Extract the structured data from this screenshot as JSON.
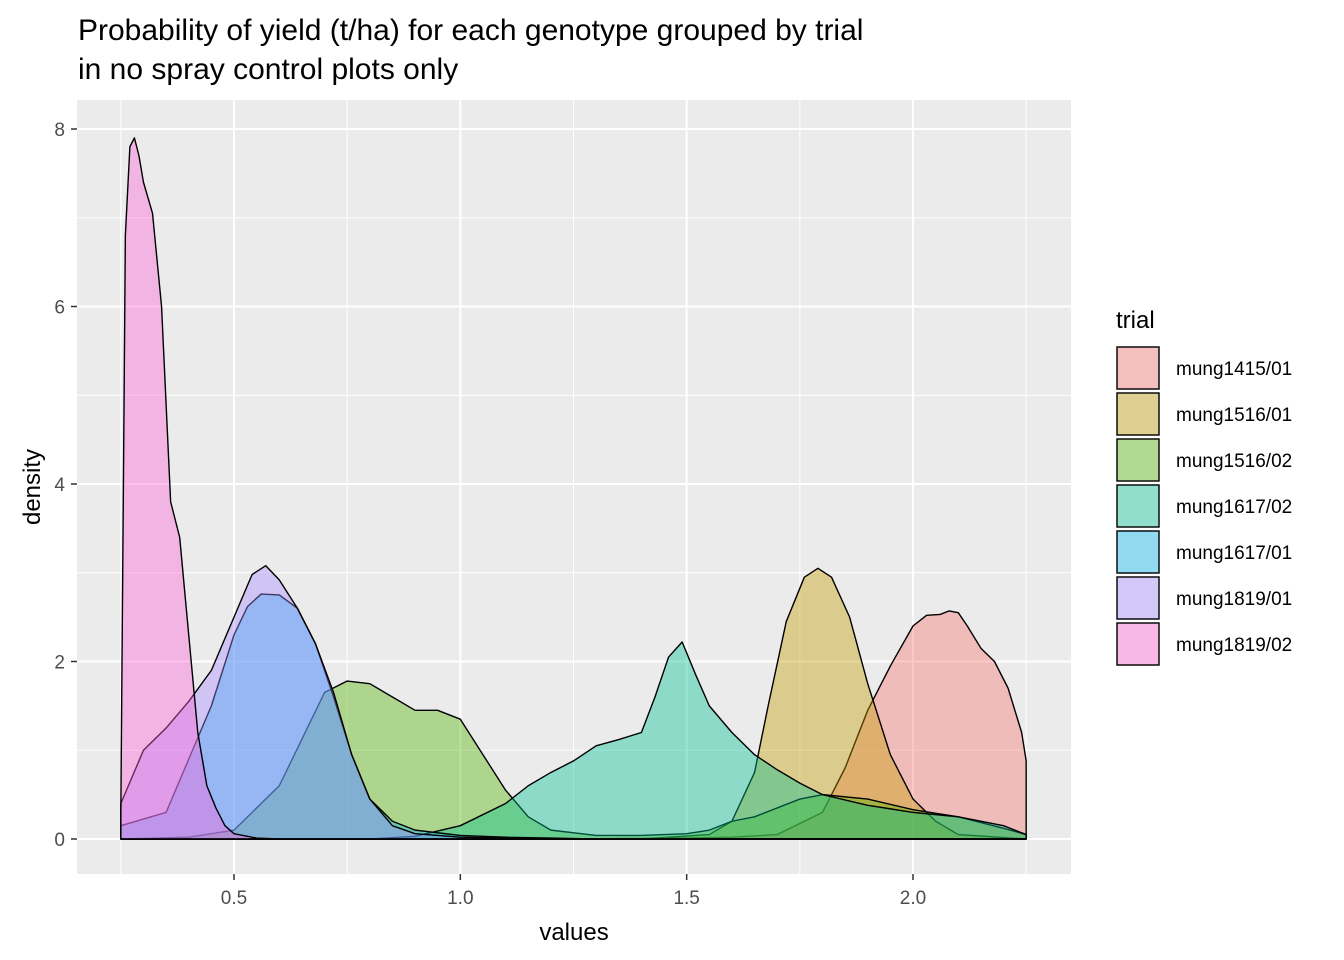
{
  "chart_data": {
    "type": "area",
    "title_lines": [
      "Probability of yield (t/ha) for each genotype grouped by trial",
      "in no spray control plots only"
    ],
    "xlabel": "values",
    "ylabel": "density",
    "xlim": [
      0.25,
      2.25
    ],
    "ylim": [
      0,
      8
    ],
    "x_ticks": [
      0.5,
      1.0,
      1.5,
      2.0
    ],
    "x_tick_labels": [
      "0.5",
      "1.0",
      "1.5",
      "2.0"
    ],
    "y_ticks": [
      0,
      2,
      4,
      6,
      8
    ],
    "y_tick_labels": [
      "0",
      "2",
      "4",
      "6",
      "8"
    ],
    "grid": true,
    "legend_title": "trial",
    "legend_position": "right",
    "series": [
      {
        "name": "mung1415/01",
        "color": "#F8766D",
        "x": [
          0.25,
          0.5,
          0.75,
          1.0,
          1.25,
          1.5,
          1.6,
          1.7,
          1.8,
          1.85,
          1.9,
          1.95,
          2.0,
          2.03,
          2.06,
          2.08,
          2.1,
          2.12,
          2.15,
          2.18,
          2.21,
          2.24,
          2.25,
          2.25
        ],
        "y": [
          0.0,
          0.0,
          0.0,
          0.0,
          0.0,
          0.01,
          0.02,
          0.05,
          0.3,
          0.8,
          1.45,
          1.95,
          2.4,
          2.52,
          2.53,
          2.57,
          2.55,
          2.4,
          2.15,
          2.0,
          1.7,
          1.2,
          0.88,
          0.0
        ]
      },
      {
        "name": "mung1516/01",
        "color": "#C49A00",
        "x": [
          0.25,
          1.0,
          1.4,
          1.55,
          1.6,
          1.65,
          1.68,
          1.72,
          1.76,
          1.79,
          1.82,
          1.86,
          1.9,
          1.95,
          2.0,
          2.05,
          2.1,
          2.25
        ],
        "y": [
          0.0,
          0.0,
          0.0,
          0.05,
          0.2,
          0.75,
          1.5,
          2.45,
          2.95,
          3.05,
          2.95,
          2.5,
          1.75,
          0.95,
          0.45,
          0.2,
          0.05,
          0.0
        ]
      },
      {
        "name": "mung1516/02",
        "color": "#53B400",
        "x": [
          0.25,
          0.4,
          0.5,
          0.6,
          0.7,
          0.75,
          0.8,
          0.85,
          0.9,
          0.95,
          1.0,
          1.05,
          1.1,
          1.15,
          1.2,
          1.3,
          1.4,
          1.5,
          1.55,
          1.6,
          1.65,
          1.7,
          1.75,
          1.8,
          1.9,
          2.0,
          2.1,
          2.2,
          2.25,
          2.25
        ],
        "y": [
          0.0,
          0.02,
          0.1,
          0.6,
          1.65,
          1.78,
          1.75,
          1.6,
          1.45,
          1.45,
          1.35,
          0.95,
          0.55,
          0.25,
          0.1,
          0.04,
          0.04,
          0.06,
          0.1,
          0.2,
          0.25,
          0.35,
          0.45,
          0.5,
          0.45,
          0.33,
          0.25,
          0.12,
          0.05,
          0.0
        ]
      },
      {
        "name": "mung1617/02",
        "color": "#00C094",
        "x": [
          0.25,
          0.8,
          0.9,
          1.0,
          1.1,
          1.15,
          1.2,
          1.25,
          1.3,
          1.35,
          1.4,
          1.43,
          1.46,
          1.49,
          1.52,
          1.55,
          1.6,
          1.65,
          1.7,
          1.75,
          1.8,
          1.9,
          2.0,
          2.1,
          2.2,
          2.25,
          2.25
        ],
        "y": [
          0.0,
          0.0,
          0.03,
          0.15,
          0.4,
          0.6,
          0.75,
          0.88,
          1.05,
          1.12,
          1.2,
          1.6,
          2.05,
          2.22,
          1.85,
          1.5,
          1.2,
          0.95,
          0.78,
          0.63,
          0.5,
          0.38,
          0.3,
          0.25,
          0.15,
          0.05,
          0.0
        ]
      },
      {
        "name": "mung1617/01",
        "color": "#00B6EB",
        "x": [
          0.25,
          0.35,
          0.4,
          0.45,
          0.5,
          0.53,
          0.56,
          0.6,
          0.64,
          0.68,
          0.72,
          0.76,
          0.8,
          0.85,
          0.9,
          1.0,
          1.1,
          1.2,
          1.3,
          2.25
        ],
        "y": [
          0.15,
          0.3,
          0.9,
          1.5,
          2.3,
          2.62,
          2.76,
          2.75,
          2.6,
          2.2,
          1.6,
          0.95,
          0.45,
          0.2,
          0.1,
          0.04,
          0.02,
          0.01,
          0.0,
          0.0
        ]
      },
      {
        "name": "mung1819/01",
        "color": "#A58AFF",
        "x": [
          0.25,
          0.3,
          0.35,
          0.4,
          0.45,
          0.5,
          0.54,
          0.57,
          0.6,
          0.64,
          0.68,
          0.72,
          0.76,
          0.8,
          0.85,
          0.9,
          1.0,
          1.1,
          1.2,
          2.25
        ],
        "y": [
          0.4,
          1.0,
          1.25,
          1.55,
          1.9,
          2.5,
          2.98,
          3.08,
          2.92,
          2.6,
          2.2,
          1.65,
          0.95,
          0.45,
          0.15,
          0.06,
          0.02,
          0.01,
          0.0,
          0.0
        ]
      },
      {
        "name": "mung1819/02",
        "color": "#FB61D7",
        "x": [
          0.25,
          0.26,
          0.27,
          0.28,
          0.29,
          0.3,
          0.32,
          0.34,
          0.36,
          0.38,
          0.4,
          0.42,
          0.44,
          0.46,
          0.48,
          0.5,
          0.55,
          0.6,
          2.25
        ],
        "y": [
          0.3,
          6.8,
          7.8,
          7.9,
          7.7,
          7.4,
          7.05,
          6.0,
          3.8,
          3.4,
          2.3,
          1.2,
          0.6,
          0.35,
          0.15,
          0.06,
          0.01,
          0.0,
          0.0
        ]
      }
    ]
  }
}
